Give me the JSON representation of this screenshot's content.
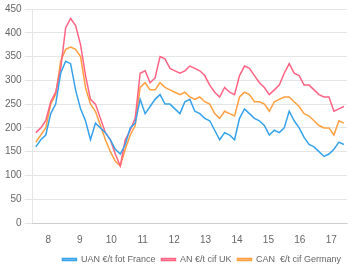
{
  "chart_data": {
    "type": "line",
    "x": [
      7.6,
      7.758064516,
      7.916129032,
      8.074193548,
      8.232258065,
      8.390322581,
      8.548387097,
      8.706451613,
      8.864516129,
      9.022580645,
      9.180645161,
      9.338709677,
      9.496774194,
      9.65483871,
      9.812903226,
      9.970967742,
      10.129032258,
      10.287096774,
      10.44516129,
      10.603225806,
      10.761290323,
      10.919354839,
      11.077419355,
      11.235483871,
      11.393548387,
      11.551612903,
      11.709677419,
      11.867741935,
      12.025806452,
      12.183870968,
      12.341935484,
      12.5,
      12.658064516,
      12.816129032,
      12.974193548,
      13.132258065,
      13.290322581,
      13.448387097,
      13.606451613,
      13.764516129,
      13.922580645,
      14.080645161,
      14.238709677,
      14.396774194,
      14.55483871,
      14.712903226,
      14.870967742,
      15.029032258,
      15.187096774,
      15.34516129,
      15.503225806,
      15.661290323,
      15.819354839,
      15.977419355,
      16.135483871,
      16.293548387,
      16.451612903,
      16.609677419,
      16.767741935,
      16.925806452,
      17.083870968,
      17.241935484,
      17.4
    ],
    "series": [
      {
        "name": "UAN €/t fot France",
        "values": [
          160,
          175,
          185,
          230,
          250,
          315,
          340,
          335,
          280,
          240,
          215,
          175,
          210,
          200,
          190,
          175,
          155,
          145,
          165,
          200,
          210,
          260,
          230,
          245,
          260,
          270,
          250,
          250,
          240,
          230,
          255,
          260,
          235,
          230,
          220,
          215,
          195,
          175,
          190,
          185,
          175,
          220,
          240,
          230,
          220,
          215,
          205,
          185,
          195,
          190,
          200,
          235,
          215,
          200,
          180,
          165,
          160,
          150,
          140,
          145,
          155,
          170,
          165
        ]
      },
      {
        "name": "AN €/t cif UK",
        "values": [
          190,
          200,
          215,
          255,
          275,
          325,
          410,
          430,
          415,
          375,
          310,
          260,
          250,
          220,
          190,
          175,
          145,
          120,
          175,
          195,
          220,
          315,
          320,
          295,
          305,
          350,
          345,
          325,
          320,
          315,
          320,
          330,
          325,
          320,
          310,
          290,
          275,
          265,
          285,
          275,
          270,
          310,
          330,
          325,
          310,
          295,
          285,
          270,
          280,
          290,
          315,
          335,
          315,
          310,
          290,
          290,
          280,
          270,
          265,
          265,
          235,
          240,
          245
        ]
      },
      {
        "name": "CAN  €/t cif Germany",
        "values": [
          170,
          185,
          200,
          250,
          270,
          340,
          365,
          370,
          365,
          350,
          285,
          250,
          235,
          205,
          175,
          150,
          130,
          120,
          155,
          185,
          205,
          285,
          295,
          280,
          280,
          295,
          285,
          280,
          275,
          270,
          275,
          265,
          260,
          265,
          255,
          250,
          230,
          220,
          235,
          230,
          225,
          265,
          275,
          270,
          255,
          255,
          250,
          235,
          255,
          260,
          265,
          265,
          255,
          245,
          230,
          225,
          215,
          205,
          200,
          200,
          185,
          215,
          210
        ]
      }
    ],
    "xlim": [
      7.5,
      17.5
    ],
    "xticks": [
      8,
      9,
      10,
      11,
      12,
      13,
      14,
      15,
      16,
      17
    ],
    "ylim": [
      0,
      450
    ],
    "yticks": [
      0,
      50,
      100,
      150,
      200,
      250,
      300,
      350,
      400,
      450
    ],
    "grid": "y",
    "legend": "lower right"
  }
}
